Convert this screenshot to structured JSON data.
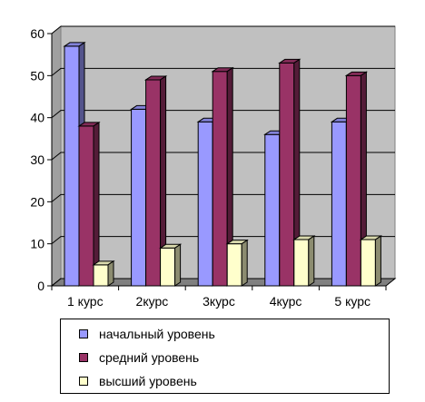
{
  "chart_data": {
    "type": "bar",
    "categories": [
      "1 курс",
      "2курс",
      "3курс",
      "4курс",
      "5 курс"
    ],
    "series": [
      {
        "name": "начальный уровень",
        "values": [
          57,
          42,
          39,
          36,
          39
        ],
        "color": "#9999ff"
      },
      {
        "name": "средний уровень",
        "values": [
          38,
          49,
          51,
          53,
          50
        ],
        "color": "#993366"
      },
      {
        "name": "высший уровень",
        "values": [
          5,
          9,
          10,
          11,
          11
        ],
        "color": "#ffffcc"
      }
    ],
    "yticks": [
      "0",
      "10",
      "20",
      "30",
      "40",
      "50",
      "60"
    ],
    "ylim": [
      0,
      60
    ],
    "grid": true,
    "plot_background": "#c0c0c0",
    "legend_position": "bottom"
  }
}
